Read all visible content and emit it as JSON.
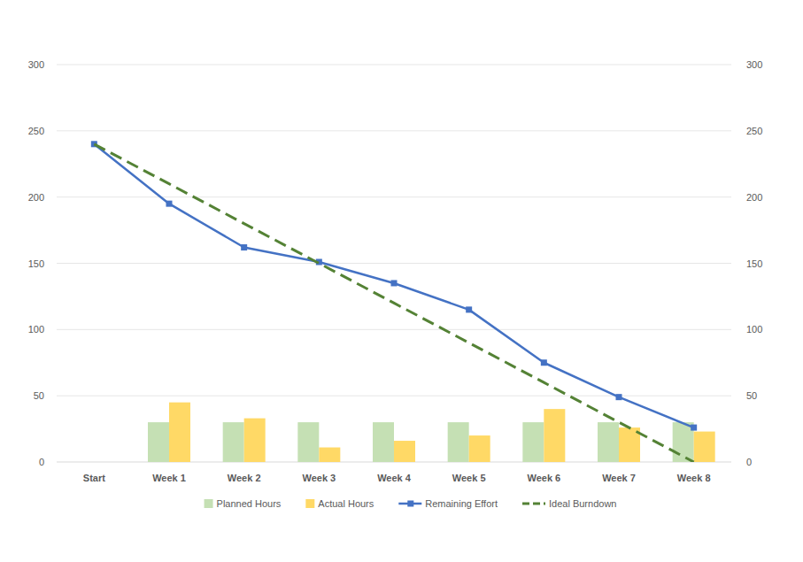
{
  "chart_data": {
    "type": "combo",
    "categories": [
      "Start",
      "Week 1",
      "Week 2",
      "Week 3",
      "Week 4",
      "Week 5",
      "Week 6",
      "Week 7",
      "Week 8"
    ],
    "series": [
      {
        "name": "Planned Hours",
        "type": "bar",
        "color": "#c5e0b4",
        "values": [
          null,
          30,
          30,
          30,
          30,
          30,
          30,
          30,
          30
        ]
      },
      {
        "name": "Actual Hours",
        "type": "bar",
        "color": "#ffd966",
        "values": [
          null,
          45,
          33,
          11,
          16,
          20,
          40,
          26,
          23
        ]
      },
      {
        "name": "Remaining Effort",
        "type": "line",
        "color": "#4472c4",
        "marker": "square",
        "line_style": "solid",
        "axis": "y2",
        "values": [
          240,
          195,
          162,
          151,
          135,
          115,
          75,
          49,
          26
        ]
      },
      {
        "name": "Ideal Burndown",
        "type": "line",
        "color": "#548235",
        "line_style": "dashed",
        "axis": "y2",
        "values": [
          240,
          210,
          180,
          150,
          120,
          90,
          60,
          30,
          0
        ]
      }
    ],
    "ylim": [
      0,
      300
    ],
    "yticks": [
      0,
      50,
      100,
      150,
      200,
      250,
      300
    ],
    "y2lim": [
      0,
      300
    ],
    "y2ticks": [
      0,
      50,
      100,
      150,
      200,
      250,
      300
    ],
    "grid": true,
    "legend": "bottom"
  }
}
